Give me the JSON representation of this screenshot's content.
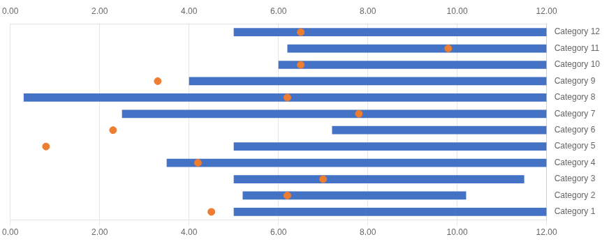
{
  "chart_data": {
    "type": "bar",
    "orientation": "horizontal",
    "categories": [
      "Category 1",
      "Category 2",
      "Category 3",
      "Category 4",
      "Category 5",
      "Category 6",
      "Category 7",
      "Category 8",
      "Category 9",
      "Category 10",
      "Category 11",
      "Category 12"
    ],
    "series": [
      {
        "type": "bar",
        "color": "#4472C4",
        "start": [
          5.0,
          5.2,
          5.0,
          3.5,
          5.0,
          7.2,
          2.5,
          0.3,
          4.0,
          6.0,
          6.2,
          5.0
        ],
        "end": [
          12.0,
          10.2,
          11.5,
          12.0,
          12.0,
          12.0,
          12.0,
          12.0,
          12.0,
          12.0,
          12.0,
          12.0
        ]
      },
      {
        "type": "scatter",
        "color": "#ED7D31",
        "marker": "circle",
        "values": [
          4.5,
          6.2,
          7.0,
          4.2,
          0.8,
          2.3,
          7.8,
          6.2,
          3.3,
          6.5,
          9.8,
          6.5
        ]
      }
    ],
    "xlim": [
      0.0,
      12.0
    ],
    "xticks": [
      {
        "value": 0.0,
        "label": "0.00"
      },
      {
        "value": 2.0,
        "label": "2.00"
      },
      {
        "value": 4.0,
        "label": "4.00"
      },
      {
        "value": 6.0,
        "label": "6.00"
      },
      {
        "value": 8.0,
        "label": "8.00"
      },
      {
        "value": 10.0,
        "label": "10.00"
      },
      {
        "value": 12.0,
        "label": "12.00"
      }
    ],
    "grid": true
  }
}
